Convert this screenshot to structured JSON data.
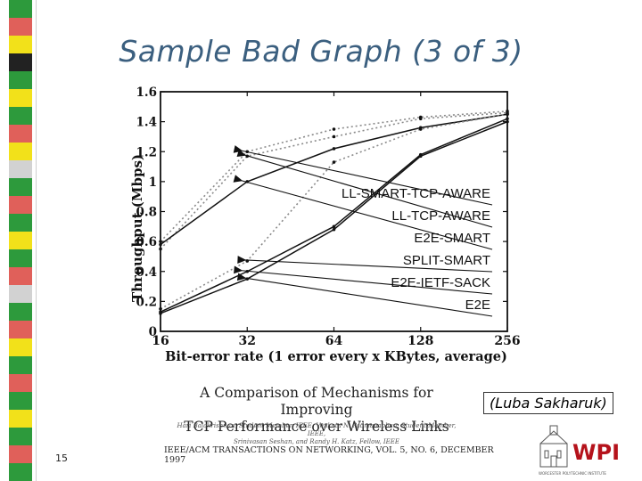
{
  "slide": {
    "title": "Sample Bad Graph (3 of 3)",
    "credit": "(Luba Sakharuk)",
    "slide_number": "15",
    "caption_title_line1": "A Comparison of Mechanisms for Improving",
    "caption_title_line2": "TCP Performance over Wireless Links",
    "caption_authors_line1": "Hari Balakrishnan, Student Member, IEEE, Venkata N. Padmanabhan, Student Member, IEEE,",
    "caption_authors_line2": "Srinivasan Seshan, and Randy H. Katz, Fellow, IEEE",
    "caption_journal": "IEEE/ACM TRANSACTIONS ON NETWORKING, VOL. 5, NO. 6, DECEMBER 1997",
    "logo_text": "WPI",
    "logo_subtext": "WORCESTER POLYTECHNIC INSTITUTE",
    "stripe_colors": [
      "#2d9a3c",
      "#e0605a",
      "#f2e11a",
      "#222222",
      "#d2d2d2"
    ]
  },
  "chart_data": {
    "type": "line",
    "title": "",
    "xlabel": "Bit-error rate (1 error every x KBytes, average)",
    "ylabel": "Throughput (Mbps)",
    "xscale": "log2",
    "x": [
      16,
      32,
      64,
      128,
      256
    ],
    "x_tick_labels": [
      "16",
      "32",
      "64",
      "128",
      "256"
    ],
    "y_tick_labels": [
      "0",
      "0.2",
      "0.4",
      "0.6",
      "0.8",
      "1",
      "1.2",
      "1.4",
      "1.6"
    ],
    "ylim": [
      0,
      1.6
    ],
    "grid": false,
    "series": [
      {
        "name": "LL-SMART-TCP-AWARE",
        "values": [
          0.6,
          1.2,
          1.35,
          1.43,
          1.47
        ],
        "style": "dotted",
        "marker_x_index": 1
      },
      {
        "name": "LL-TCP-AWARE",
        "values": [
          0.55,
          1.17,
          1.3,
          1.42,
          1.46
        ],
        "style": "dotted",
        "marker_x_index": 1
      },
      {
        "name": "E2E-SMART",
        "values": [
          0.58,
          1.0,
          1.22,
          1.36,
          1.45
        ],
        "style": "solid",
        "marker_x_index": 1
      },
      {
        "name": "SPLIT-SMART",
        "values": [
          0.15,
          0.47,
          1.13,
          1.35,
          1.45
        ],
        "style": "dotted",
        "marker_x_index": 1
      },
      {
        "name": "E2E-IETF-SACK",
        "values": [
          0.13,
          0.4,
          0.7,
          1.18,
          1.42
        ],
        "style": "solid",
        "marker_x_index": 1
      },
      {
        "name": "E2E",
        "values": [
          0.12,
          0.35,
          0.68,
          1.17,
          1.4
        ],
        "style": "solid",
        "marker_x_index": 1
      }
    ],
    "legend_placement": "inside-right, labels with arrows pointing to curves"
  }
}
